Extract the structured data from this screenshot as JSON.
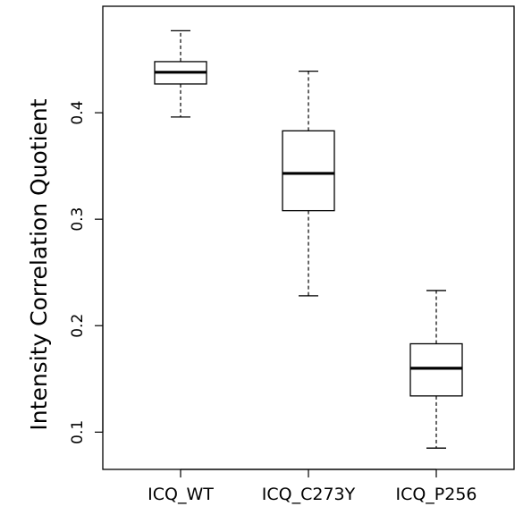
{
  "chart_data": {
    "type": "boxplot",
    "title": "",
    "xlabel": "",
    "ylabel": "Intensity Correlation Quotient",
    "ylim": [
      0.065,
      0.5
    ],
    "yticks": [
      0.1,
      0.2,
      0.3,
      0.4
    ],
    "ytick_labels": [
      "0.1",
      "0.2",
      "0.3",
      "0.4"
    ],
    "grid": false,
    "legend": "none",
    "categories": [
      "ICQ_WT",
      "ICQ_C273Y",
      "ICQ_P256"
    ],
    "boxes": [
      {
        "label": "ICQ_WT",
        "whisker_low": 0.396,
        "q1": 0.427,
        "median": 0.438,
        "q3": 0.448,
        "whisker_high": 0.477
      },
      {
        "label": "ICQ_C273Y",
        "whisker_low": 0.228,
        "q1": 0.308,
        "median": 0.343,
        "q3": 0.383,
        "whisker_high": 0.439
      },
      {
        "label": "ICQ_P256",
        "whisker_low": 0.085,
        "q1": 0.134,
        "median": 0.16,
        "q3": 0.183,
        "whisker_high": 0.233
      }
    ]
  }
}
